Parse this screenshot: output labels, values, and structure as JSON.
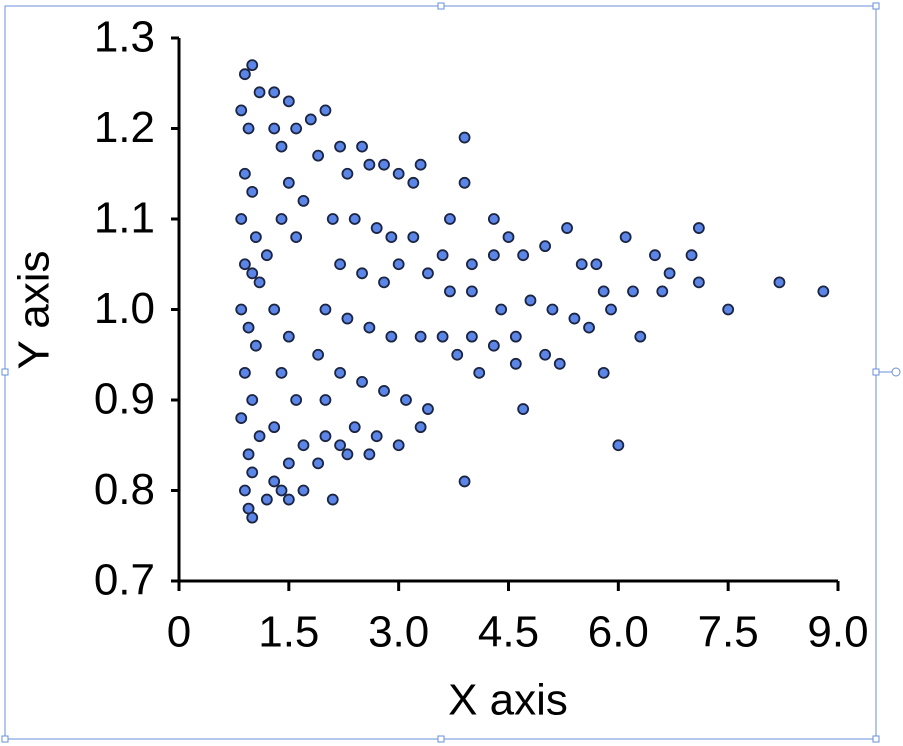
{
  "chart_data": {
    "type": "scatter",
    "x_label": "X axis",
    "y_label": "Y axis",
    "xlim": [
      0,
      9
    ],
    "ylim": [
      0.7,
      1.3
    ],
    "xticks": [
      {
        "value": 0,
        "label": "0"
      },
      1.5,
      {
        "value": 3,
        "label": "3.0"
      },
      4.5,
      {
        "value": 6,
        "label": "6.0"
      },
      7.5,
      {
        "value": 9,
        "label": "9.0"
      }
    ],
    "yticks": [
      0.7,
      0.8,
      0.9,
      {
        "value": 1,
        "label": "1.0"
      },
      1.1,
      1.2,
      1.3
    ],
    "color": "#5b86e8",
    "x": [
      0.9,
      1.0,
      0.85,
      0.95,
      1.1,
      0.9,
      1.0,
      0.85,
      1.05,
      0.9,
      1.0,
      1.1,
      0.85,
      0.95,
      1.05,
      0.9,
      1.0,
      0.85,
      1.1,
      0.95,
      1.0,
      0.9,
      0.95,
      1.0,
      1.2,
      1.3,
      1.4,
      1.5,
      1.7,
      2.1,
      1.3,
      1.4,
      1.5,
      1.3,
      1.6,
      1.8,
      2.0,
      1.9,
      2.2,
      1.5,
      1.7,
      1.4,
      1.6,
      1.2,
      1.3,
      1.5,
      1.4,
      1.6,
      1.3,
      1.7,
      1.5,
      1.9,
      2.2,
      2.3,
      2.5,
      2.6,
      2.8,
      3.0,
      3.3,
      3.2,
      2.1,
      2.4,
      2.7,
      2.9,
      3.2,
      2.2,
      2.5,
      2.8,
      3.0,
      3.4,
      2.0,
      2.3,
      2.6,
      2.9,
      3.3,
      1.9,
      2.2,
      2.5,
      2.8,
      3.1,
      3.4,
      2.0,
      2.4,
      2.7,
      3.0,
      2.3,
      2.6,
      3.3,
      2.0,
      3.9,
      3.9,
      3.7,
      4.3,
      4.5,
      3.6,
      4.0,
      4.3,
      4.7,
      5.0,
      5.3,
      3.7,
      4.0,
      4.4,
      4.8,
      5.1,
      5.4,
      3.6,
      4.0,
      4.3,
      4.6,
      5.0,
      5.2,
      3.8,
      4.1,
      3.9,
      4.7,
      4.6,
      5.5,
      5.6,
      5.7,
      5.8,
      5.8,
      5.9,
      6.0,
      6.1,
      6.2,
      6.3,
      6.5,
      6.6,
      6.7,
      7.0,
      7.1,
      7.1,
      7.5,
      8.2,
      8.8
    ],
    "y": [
      1.26,
      1.27,
      1.22,
      1.2,
      1.24,
      1.15,
      1.13,
      1.1,
      1.08,
      1.05,
      1.04,
      1.03,
      1.0,
      0.98,
      0.96,
      0.93,
      0.9,
      0.88,
      0.86,
      0.84,
      0.82,
      0.8,
      0.78,
      0.77,
      0.79,
      0.81,
      0.8,
      0.79,
      0.8,
      0.79,
      1.2,
      1.18,
      1.23,
      1.24,
      1.2,
      1.21,
      1.22,
      1.17,
      1.18,
      1.14,
      1.12,
      1.1,
      1.08,
      1.06,
      1.0,
      0.97,
      0.93,
      0.9,
      0.87,
      0.85,
      0.83,
      0.83,
      0.85,
      1.15,
      1.18,
      1.16,
      1.16,
      1.15,
      1.16,
      1.14,
      1.1,
      1.1,
      1.09,
      1.08,
      1.08,
      1.05,
      1.04,
      1.03,
      1.05,
      1.04,
      1.0,
      0.99,
      0.98,
      0.97,
      0.97,
      0.95,
      0.93,
      0.92,
      0.91,
      0.9,
      0.89,
      0.9,
      0.87,
      0.86,
      0.85,
      0.84,
      0.84,
      0.87,
      0.86,
      1.19,
      1.14,
      1.1,
      1.1,
      1.08,
      1.06,
      1.05,
      1.06,
      1.06,
      1.07,
      1.09,
      1.02,
      1.02,
      1.0,
      1.01,
      1.0,
      0.99,
      0.97,
      0.97,
      0.96,
      0.97,
      0.95,
      0.94,
      0.95,
      0.93,
      0.81,
      0.89,
      0.94,
      1.05,
      0.98,
      1.05,
      1.02,
      0.93,
      1.0,
      0.85,
      1.08,
      1.02,
      0.97,
      1.06,
      1.02,
      1.04,
      1.06,
      1.09,
      1.03,
      1.0,
      1.03,
      1.02
    ]
  }
}
